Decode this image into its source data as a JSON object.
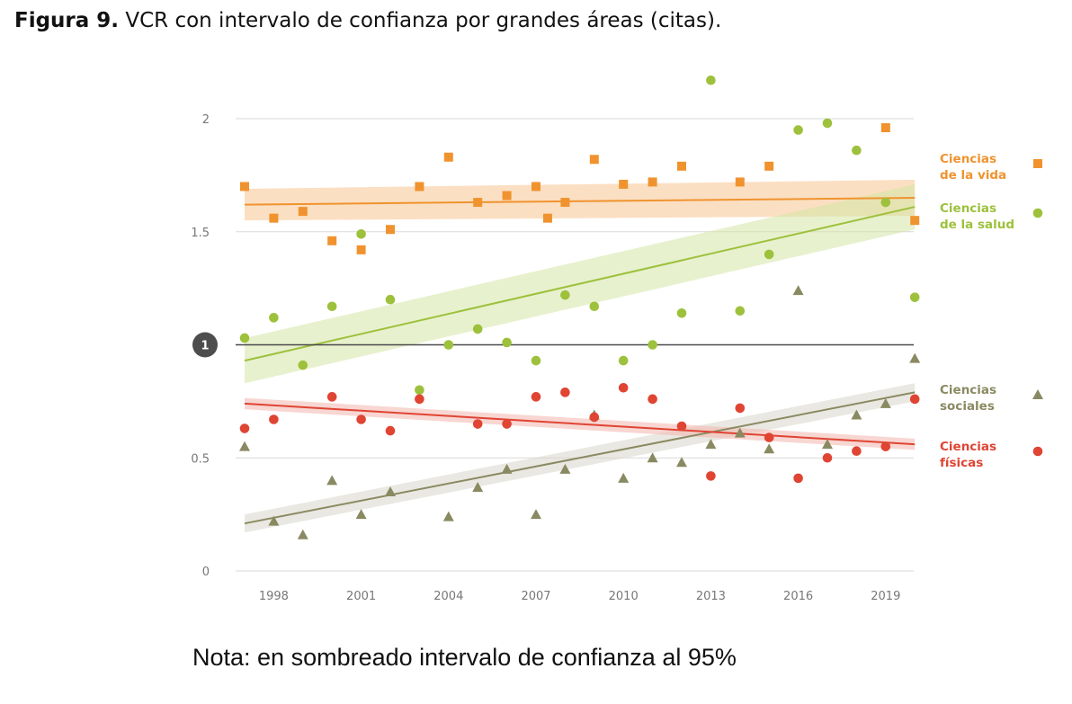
{
  "caption": {
    "label": "Figura 9.",
    "text": "VCR con intervalo de confianza por grandes áreas (citas)."
  },
  "note": "Nota: en sombreado intervalo de confianza al 95%",
  "chart_data": {
    "type": "scatter",
    "xlim": [
      1997,
      2020
    ],
    "ylim": [
      0,
      2.2
    ],
    "x_ticks": [
      1998,
      2001,
      2004,
      2007,
      2010,
      2013,
      2016,
      2019
    ],
    "y_ticks": [
      {
        "value": 0,
        "label": "0"
      },
      {
        "value": 0.5,
        "label": "0.5"
      },
      {
        "value": 1,
        "label": "1"
      },
      {
        "value": 1.5,
        "label": "1.5"
      },
      {
        "value": 2,
        "label": "2"
      }
    ],
    "reference_line": {
      "value": 1,
      "label": "1",
      "color": "#4a4a4a"
    },
    "grid": true,
    "legend_position": "right",
    "series": [
      {
        "name": "Ciencias de la vida",
        "label_lines": [
          "Ciencias",
          "de la vida"
        ],
        "marker": "square",
        "color": "#f0932f",
        "band_color": "#f7c58f",
        "trend": {
          "start": 1.62,
          "end": 1.65,
          "ci_start": 0.07,
          "ci_end": 0.08
        },
        "x": [
          1997,
          1998,
          1999,
          2000,
          2001,
          2002,
          2003,
          2004,
          2005,
          2006,
          2007,
          2007.4,
          2008,
          2009,
          2010,
          2011,
          2012,
          2014,
          2015,
          2019,
          2020
        ],
        "y": [
          1.7,
          1.56,
          1.59,
          1.46,
          1.42,
          1.51,
          1.7,
          1.83,
          1.63,
          1.66,
          1.7,
          1.56,
          1.63,
          1.82,
          1.71,
          1.72,
          1.79,
          1.72,
          1.79,
          1.96,
          1.55
        ]
      },
      {
        "name": "Ciencias de la salud",
        "label_lines": [
          "Ciencias",
          "de la salud"
        ],
        "marker": "circle",
        "color": "#9dc13c",
        "band_color": "#d5e6a5",
        "trend": {
          "start": 0.93,
          "end": 1.61,
          "ci_start": 0.1,
          "ci_end": 0.1
        },
        "x": [
          1997,
          1998,
          1999,
          2000,
          2001,
          2002,
          2003,
          2004,
          2005,
          2006,
          2007,
          2008,
          2009,
          2010,
          2011,
          2012,
          2013,
          2014,
          2015,
          2016,
          2017,
          2018,
          2019,
          2020
        ],
        "y": [
          1.03,
          1.12,
          0.91,
          1.17,
          1.49,
          1.2,
          0.8,
          1.0,
          1.07,
          1.01,
          0.93,
          1.22,
          1.17,
          0.93,
          1.0,
          1.14,
          2.17,
          1.15,
          1.4,
          1.95,
          1.98,
          1.86,
          1.63,
          1.21
        ]
      },
      {
        "name": "Ciencias sociales",
        "label_lines": [
          "Ciencias",
          "sociales"
        ],
        "marker": "triangle",
        "color": "#8a8a62",
        "band_color": "#d8d6cb",
        "trend": {
          "start": 0.21,
          "end": 0.79,
          "ci_start": 0.04,
          "ci_end": 0.04
        },
        "x": [
          1997,
          1998,
          1999,
          2000,
          2001,
          2002,
          2004,
          2005,
          2006,
          2007,
          2008,
          2009,
          2010,
          2011,
          2012,
          2013,
          2014,
          2015,
          2016,
          2017,
          2018,
          2019,
          2020
        ],
        "y": [
          0.55,
          0.22,
          0.16,
          0.4,
          0.25,
          0.35,
          0.24,
          0.37,
          0.45,
          0.25,
          0.45,
          0.69,
          0.41,
          0.5,
          0.48,
          0.56,
          0.61,
          0.54,
          1.24,
          0.56,
          0.69,
          0.74,
          0.94
        ]
      },
      {
        "name": "Ciencias físicas",
        "label_lines": [
          "Ciencias",
          "físicas"
        ],
        "marker": "circle",
        "color": "#e04433",
        "band_color": "#f3b5ad",
        "trend": {
          "start": 0.74,
          "end": 0.56,
          "ci_start": 0.025,
          "ci_end": 0.025
        },
        "x": [
          1997,
          1998,
          2000,
          2001,
          2002,
          2003,
          2005,
          2006,
          2007,
          2008,
          2009,
          2010,
          2011,
          2012,
          2013,
          2014,
          2015,
          2016,
          2017,
          2018,
          2019,
          2020
        ],
        "y": [
          0.63,
          0.67,
          0.77,
          0.67,
          0.62,
          0.76,
          0.65,
          0.65,
          0.77,
          0.79,
          0.68,
          0.81,
          0.76,
          0.64,
          0.42,
          0.72,
          0.59,
          0.41,
          0.5,
          0.53,
          0.55,
          0.76
        ]
      }
    ]
  }
}
